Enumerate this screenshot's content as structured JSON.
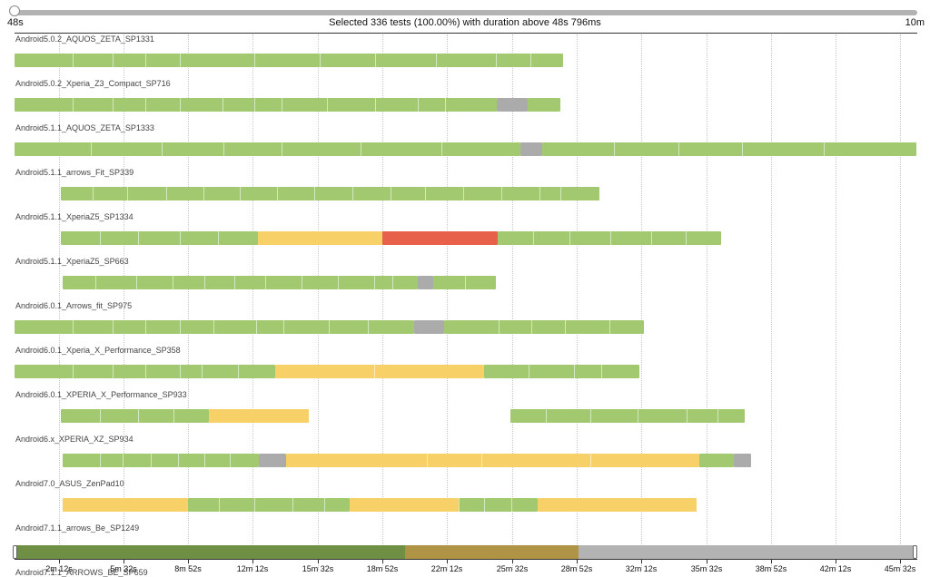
{
  "slider": {
    "min_label": "48s",
    "max_label": "10m",
    "summary": "Selected 336 tests (100.00%) with duration above 48s 796ms"
  },
  "colors": {
    "pass": "#a2c96f",
    "warning": "#f8d068",
    "failure": "#e6604a",
    "skipped": "#ababab"
  },
  "devices": [
    {
      "name": "Android5.0.2_AQUOS_ZETA_SP1331"
    },
    {
      "name": "Android5.0.2_Xperia_Z3_Compact_SP716"
    },
    {
      "name": "Android5.1.1_AQUOS_ZETA_SP1333"
    },
    {
      "name": "Android5.1.1_arrows_Fit_SP339"
    },
    {
      "name": "Android5.1.1_XperiaZ5_SP1334"
    },
    {
      "name": "Android5.1.1_XperiaZ5_SP663"
    },
    {
      "name": "Android6.0.1_Arrows_fit_SP975"
    },
    {
      "name": "Android6.0.1_Xperia_X_Performance_SP358"
    },
    {
      "name": "Android6.0.1_XPERIA_X_Performance_SP933"
    },
    {
      "name": "Android6.x_XPERIA_XZ_SP934"
    },
    {
      "name": "Android7.0_ASUS_ZenPad10"
    },
    {
      "name": "Android7.1.1_arrows_Be_SP1249"
    },
    {
      "name": "Android7.1.1_ARROWS_BE_SP659"
    }
  ],
  "axis": {
    "ticks": [
      "2m 12s",
      "5m 32s",
      "8m 52s",
      "12m 12s",
      "15m 32s",
      "18m 52s",
      "22m 12s",
      "25m 32s",
      "28m 52s",
      "32m 12s",
      "35m 32s",
      "38m 52s",
      "42m 12s",
      "45m 32s"
    ]
  }
}
